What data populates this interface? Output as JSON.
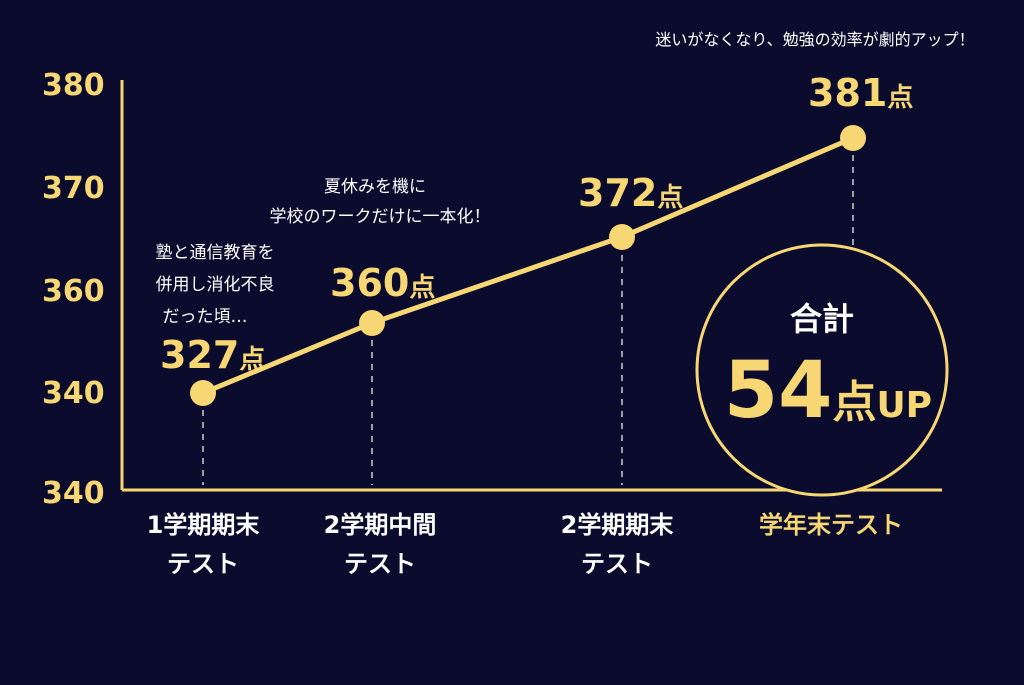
{
  "colors": {
    "background": "#0b0b2e",
    "accent": "#f6d774",
    "text": "#ffffff",
    "dashed": "#cfcfcf"
  },
  "chart_data": {
    "type": "line",
    "categories": [
      "1学期期末テスト",
      "2学期中間テスト",
      "2学期期末テスト",
      "学年末テスト"
    ],
    "category_lines": [
      [
        "1学期期末",
        "テスト"
      ],
      [
        "2学期中間",
        "テスト"
      ],
      [
        "2学期期末",
        "テスト"
      ],
      [
        "学年末テスト"
      ]
    ],
    "series": [
      {
        "values": [
          327,
          360,
          372,
          381
        ]
      }
    ],
    "point_labels": [
      {
        "num": "327",
        "unit": "点"
      },
      {
        "num": "360",
        "unit": "点"
      },
      {
        "num": "372",
        "unit": "点"
      },
      {
        "num": "381",
        "unit": "点"
      }
    ],
    "y_ticks": [
      "380",
      "370",
      "360",
      "340",
      "340"
    ],
    "annotations": [
      {
        "lines": [
          "塾と通信教育を",
          "併用し消化不良",
          "だった頃…"
        ]
      },
      {
        "lines": [
          "夏休みを機に",
          "学校のワークだけに一本化！"
        ]
      },
      {
        "lines": [
          "迷いがなくなり、勉強の効率が劇的アップ！"
        ]
      }
    ],
    "summary": {
      "title": "合計",
      "big_num": "54",
      "unit": "点",
      "suffix": "UP"
    },
    "highlight_category_index": 3
  }
}
